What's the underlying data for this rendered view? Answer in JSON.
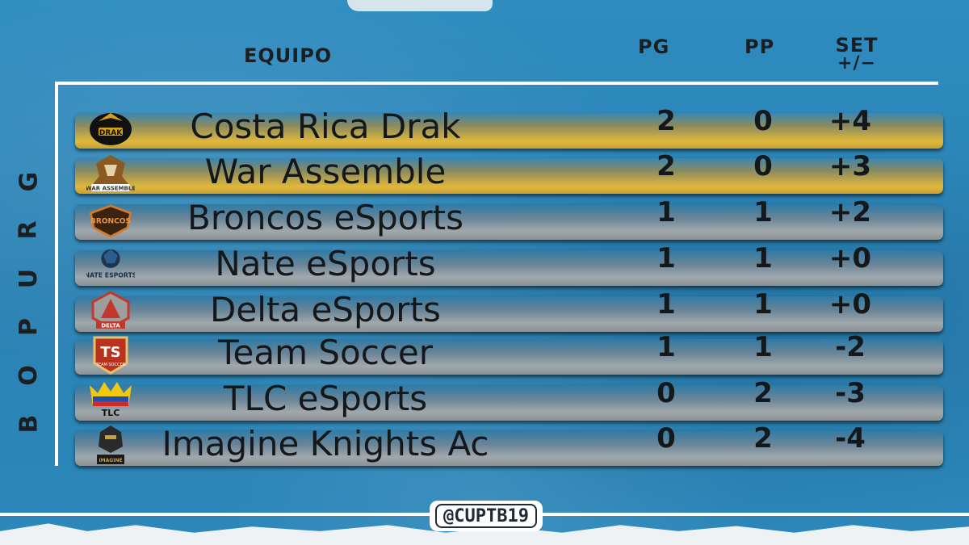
{
  "group_label": [
    "G",
    "R",
    "U",
    "P",
    "O",
    " ",
    "B"
  ],
  "headers": {
    "team": "EQUIPO",
    "wins": "PG",
    "losses": "PP",
    "set_line1": "SET",
    "set_line2": "+/−"
  },
  "teams": [
    {
      "name": "Costa Rica Drak",
      "pg": "2",
      "pp": "0",
      "set": "+4",
      "highlight": true,
      "logo_icon": "drak-logo-icon"
    },
    {
      "name": "War Assemble",
      "pg": "2",
      "pp": "0",
      "set": "+3",
      "highlight": true,
      "logo_icon": "war-assemble-logo-icon"
    },
    {
      "name": "Broncos eSports",
      "pg": "1",
      "pp": "1",
      "set": "+2",
      "highlight": false,
      "logo_icon": "broncos-logo-icon"
    },
    {
      "name": "Nate eSports",
      "pg": "1",
      "pp": "1",
      "set": "+0",
      "highlight": false,
      "logo_icon": "nate-logo-icon"
    },
    {
      "name": "Delta eSports",
      "pg": "1",
      "pp": "1",
      "set": "+0",
      "highlight": false,
      "logo_icon": "delta-logo-icon"
    },
    {
      "name": "Team Soccer",
      "pg": "1",
      "pp": "1",
      "set": "-2",
      "highlight": false,
      "logo_icon": "team-soccer-logo-icon"
    },
    {
      "name": "TLC eSports",
      "pg": "0",
      "pp": "2",
      "set": "-3",
      "highlight": false,
      "logo_icon": "tlc-logo-icon"
    },
    {
      "name": "Imagine Knights Ac",
      "pg": "0",
      "pp": "2",
      "set": "-4",
      "highlight": false,
      "logo_icon": "imagine-knights-logo-icon"
    }
  ],
  "handle": "@CUPTB19",
  "colors": {
    "background": "#2a86b8",
    "gold_bar": "#e0b83c",
    "grey_bar": "#a0a8ac",
    "text": "#15181b"
  }
}
